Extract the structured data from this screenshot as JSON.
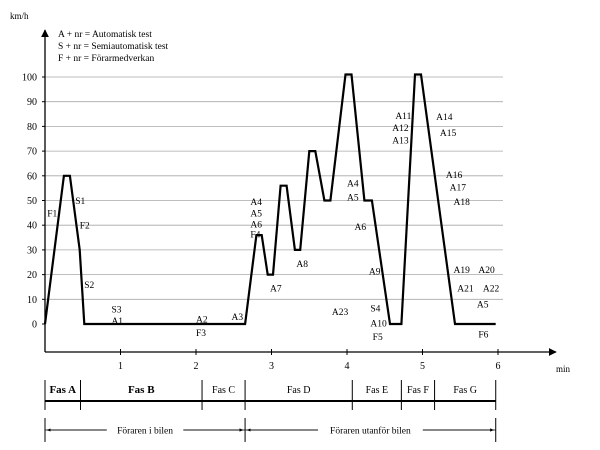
{
  "chart_data": {
    "type": "line",
    "title": "",
    "xlabel": "min",
    "ylabel": "km/h",
    "xlim": [
      0,
      6.8
    ],
    "ylim": [
      0,
      110
    ],
    "x_ticks": [
      1,
      2,
      3,
      4,
      5,
      6
    ],
    "y_ticks": [
      0,
      10,
      20,
      30,
      40,
      50,
      60,
      70,
      80,
      90,
      100
    ],
    "grid": true,
    "legend": [
      "A + nr  = Automatisk test",
      "S + nr  = Semiautomatisk test",
      "F + nr  = Förarmedverkan"
    ],
    "series": [
      {
        "points": [
          [
            0,
            0
          ],
          [
            0.25,
            60
          ],
          [
            0.33,
            60
          ],
          [
            0.46,
            30
          ],
          [
            0.52,
            0
          ],
          [
            2.65,
            0
          ],
          [
            2.8,
            36
          ],
          [
            2.87,
            36
          ],
          [
            2.95,
            20
          ],
          [
            3.02,
            20
          ],
          [
            3.12,
            56
          ],
          [
            3.2,
            56
          ],
          [
            3.31,
            30
          ],
          [
            3.38,
            30
          ],
          [
            3.5,
            70
          ],
          [
            3.58,
            70
          ],
          [
            3.7,
            50
          ],
          [
            3.78,
            50
          ],
          [
            3.98,
            101
          ],
          [
            4.06,
            101
          ],
          [
            4.23,
            50
          ],
          [
            4.33,
            50
          ],
          [
            4.57,
            0
          ],
          [
            4.72,
            0
          ],
          [
            4.9,
            101
          ],
          [
            4.98,
            101
          ],
          [
            5.43,
            0
          ],
          [
            5.97,
            0
          ]
        ]
      }
    ],
    "annotations": [
      {
        "text": "F1",
        "x": 0.03,
        "y": 45
      },
      {
        "text": "S1",
        "x": 0.4,
        "y": 50
      },
      {
        "text": "F2",
        "x": 0.46,
        "y": 40
      },
      {
        "text": "S2",
        "x": 0.52,
        "y": 16
      },
      {
        "text": "S3",
        "x": 0.88,
        "y": 6
      },
      {
        "text": "A1",
        "x": 0.88,
        "y": 1.5
      },
      {
        "text": "A2",
        "x": 2.0,
        "y": 2
      },
      {
        "text": "F3",
        "x": 2.0,
        "y": -3.5
      },
      {
        "text": "A3",
        "x": 2.47,
        "y": 3
      },
      {
        "text": "A4",
        "x": 2.72,
        "y": 49.5
      },
      {
        "text": "A5",
        "x": 2.72,
        "y": 45
      },
      {
        "text": "A6",
        "x": 2.72,
        "y": 40.5
      },
      {
        "text": "F4",
        "x": 2.72,
        "y": 36.5
      },
      {
        "text": "A7",
        "x": 2.98,
        "y": 14.5
      },
      {
        "text": "A8",
        "x": 3.33,
        "y": 24.5
      },
      {
        "text": "A4",
        "x": 4.0,
        "y": 57
      },
      {
        "text": "A5",
        "x": 4.0,
        "y": 51.5
      },
      {
        "text": "A6",
        "x": 4.1,
        "y": 39.5
      },
      {
        "text": "A9",
        "x": 4.29,
        "y": 21.5
      },
      {
        "text": "A23",
        "x": 3.8,
        "y": 5
      },
      {
        "text": "S4",
        "x": 4.31,
        "y": 6.5
      },
      {
        "text": "A10",
        "x": 4.31,
        "y": 0.5
      },
      {
        "text": "F5",
        "x": 4.34,
        "y": -5
      },
      {
        "text": "A11",
        "x": 4.64,
        "y": 84.5
      },
      {
        "text": "A12",
        "x": 4.6,
        "y": 79.5
      },
      {
        "text": "A13",
        "x": 4.6,
        "y": 74.5
      },
      {
        "text": "A14",
        "x": 5.18,
        "y": 84
      },
      {
        "text": "A15",
        "x": 5.23,
        "y": 77.5
      },
      {
        "text": "A16",
        "x": 5.31,
        "y": 60.5
      },
      {
        "text": "A17",
        "x": 5.36,
        "y": 55.5
      },
      {
        "text": "A18",
        "x": 5.41,
        "y": 49.5
      },
      {
        "text": "A19",
        "x": 5.41,
        "y": 22
      },
      {
        "text": "A20",
        "x": 5.74,
        "y": 22
      },
      {
        "text": "A21",
        "x": 5.46,
        "y": 14.5
      },
      {
        "text": "A22",
        "x": 5.8,
        "y": 14.5
      },
      {
        "text": "A5",
        "x": 5.72,
        "y": 8
      },
      {
        "text": "F6",
        "x": 5.74,
        "y": -4
      }
    ],
    "phases": [
      {
        "label": "Fas A",
        "start": 0,
        "end": 0.47
      },
      {
        "label": "Fas B",
        "start": 0.47,
        "end": 2.08
      },
      {
        "label": "Fas C",
        "start": 2.08,
        "end": 2.65
      },
      {
        "label": "Fas D",
        "start": 2.65,
        "end": 4.07
      },
      {
        "label": "Fas E",
        "start": 4.07,
        "end": 4.72
      },
      {
        "label": "Fas F",
        "start": 4.72,
        "end": 5.16
      },
      {
        "label": "Fas G",
        "start": 5.16,
        "end": 5.97
      }
    ],
    "driver_periods": [
      {
        "label": "Föraren i bilen",
        "start": 0,
        "end": 2.65
      },
      {
        "label": "Föraren utanför bilen",
        "start": 2.65,
        "end": 5.97
      }
    ]
  }
}
